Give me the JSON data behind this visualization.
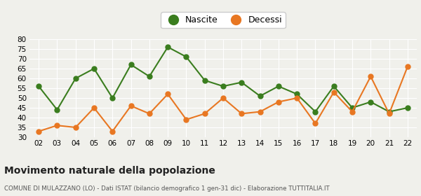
{
  "years": [
    "02",
    "03",
    "04",
    "05",
    "06",
    "07",
    "08",
    "09",
    "10",
    "11",
    "12",
    "13",
    "14",
    "15",
    "16",
    "17",
    "18",
    "19",
    "20",
    "21",
    "22"
  ],
  "nascite": [
    56,
    44,
    60,
    65,
    50,
    67,
    61,
    76,
    71,
    59,
    56,
    58,
    51,
    56,
    52,
    43,
    56,
    45,
    48,
    43,
    45
  ],
  "decessi": [
    33,
    36,
    35,
    45,
    33,
    46,
    42,
    52,
    39,
    42,
    50,
    42,
    43,
    48,
    50,
    37,
    53,
    43,
    61,
    42,
    66
  ],
  "nascite_color": "#3a7d1e",
  "decessi_color": "#e87722",
  "background_color": "#f0f0eb",
  "grid_color": "#ffffff",
  "ylim": [
    30,
    80
  ],
  "yticks": [
    30,
    35,
    40,
    45,
    50,
    55,
    60,
    65,
    70,
    75,
    80
  ],
  "title": "Movimento naturale della popolazione",
  "subtitle": "COMUNE DI MULAZZANO (LO) - Dati ISTAT (bilancio demografico 1 gen-31 dic) - Elaborazione TUTTITALIA.IT",
  "legend_labels": [
    "Nascite",
    "Decessi"
  ],
  "marker_size": 5,
  "line_width": 1.5
}
